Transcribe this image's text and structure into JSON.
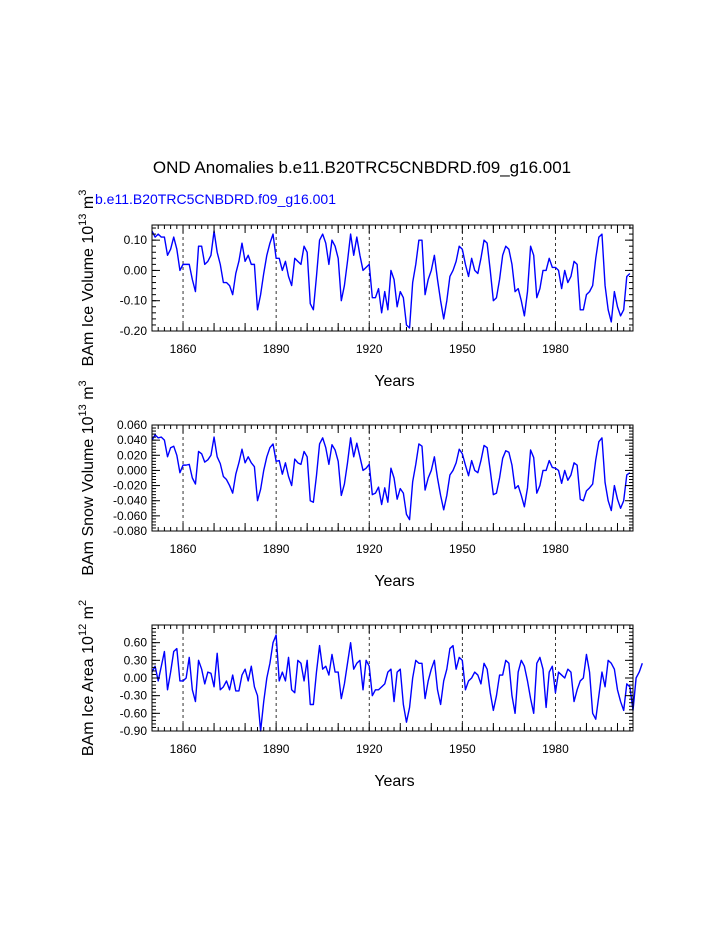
{
  "title": "OND Anomalies b.e11.B20TRC5CNBDRD.f09_g16.001",
  "subtitle": "b.e11.B20TRC5CNBDRD.f09_g16.001",
  "colors": {
    "line": "#0000ff",
    "text": "#000000"
  },
  "chart_data": [
    {
      "type": "line",
      "name": "volume",
      "ylabel_main": "BAm Ice Volume 10",
      "ylabel_exp": "13",
      "ylabel_unit": " m",
      "ylabel_unit_exp": "3",
      "xlabel": "Years",
      "xlim": [
        1850,
        2005
      ],
      "ylim": [
        -0.2,
        0.15
      ],
      "yticks": [
        -0.2,
        -0.1,
        0.0,
        0.1
      ],
      "ytick_labels": [
        "-0.20",
        "-0.10",
        "0.00",
        "0.10"
      ],
      "xticks": [
        1860,
        1890,
        1920,
        1950,
        1980
      ],
      "xtick_labels": [
        "1860",
        "1890",
        "1920",
        "1950",
        "1980"
      ],
      "ref_lines_x": [
        1860,
        1890,
        1920,
        1950,
        1980
      ],
      "x_start": 1850,
      "values": [
        0.13,
        0.11,
        0.12,
        0.11,
        0.11,
        0.05,
        0.07,
        0.11,
        0.07,
        0.0,
        0.02,
        0.02,
        0.02,
        -0.03,
        -0.07,
        0.08,
        0.08,
        0.02,
        0.03,
        0.05,
        0.13,
        0.06,
        0.02,
        -0.04,
        -0.04,
        -0.05,
        -0.08,
        -0.01,
        0.03,
        0.09,
        0.03,
        0.05,
        0.02,
        0.02,
        -0.13,
        -0.08,
        -0.01,
        0.05,
        0.09,
        0.12,
        0.04,
        0.04,
        0.0,
        0.03,
        -0.02,
        -0.05,
        0.04,
        0.03,
        0.02,
        0.08,
        0.06,
        -0.11,
        -0.13,
        -0.02,
        0.1,
        0.12,
        0.09,
        0.02,
        0.1,
        0.08,
        0.04,
        -0.1,
        -0.05,
        0.03,
        0.12,
        0.05,
        0.11,
        0.05,
        0.0,
        0.01,
        0.02,
        -0.09,
        -0.09,
        -0.06,
        -0.14,
        -0.07,
        -0.13,
        0.0,
        -0.03,
        -0.12,
        -0.07,
        -0.09,
        -0.18,
        -0.19,
        -0.04,
        0.02,
        0.1,
        0.1,
        -0.08,
        -0.03,
        0.0,
        0.05,
        -0.03,
        -0.1,
        -0.16,
        -0.1,
        -0.02,
        0.0,
        0.03,
        0.08,
        0.07,
        0.02,
        -0.02,
        0.04,
        0.0,
        -0.01,
        0.04,
        0.1,
        0.09,
        0.0,
        -0.1,
        -0.09,
        -0.03,
        0.05,
        0.08,
        0.07,
        0.02,
        -0.07,
        -0.06,
        -0.1,
        -0.15,
        -0.07,
        0.08,
        0.05,
        -0.09,
        -0.06,
        0.0,
        0.0,
        0.04,
        0.01,
        0.01,
        0.0,
        -0.06,
        0.0,
        -0.04,
        -0.02,
        0.03,
        0.02,
        -0.13,
        -0.13,
        -0.08,
        -0.07,
        -0.05,
        0.04,
        0.11,
        0.12,
        -0.05,
        -0.13,
        -0.17,
        -0.07,
        -0.12,
        -0.15,
        -0.13,
        -0.02,
        -0.01
      ]
    },
    {
      "type": "line",
      "name": "snow",
      "ylabel_main": "BAm Snow Volume 10",
      "ylabel_exp": "13",
      "ylabel_unit": " m",
      "ylabel_unit_exp": "3",
      "xlabel": "Years",
      "xlim": [
        1850,
        2005
      ],
      "ylim": [
        -0.08,
        0.06
      ],
      "yticks": [
        -0.08,
        -0.06,
        -0.04,
        -0.02,
        0.0,
        0.02,
        0.04,
        0.06
      ],
      "ytick_labels": [
        "-0.080",
        "-0.060",
        "-0.040",
        "-0.020",
        "0.000",
        "0.020",
        "0.040",
        "0.060"
      ],
      "xticks": [
        1860,
        1890,
        1920,
        1950,
        1980
      ],
      "xtick_labels": [
        "1860",
        "1890",
        "1920",
        "1950",
        "1980"
      ],
      "ref_lines_x": [
        1860,
        1890,
        1920,
        1950,
        1980
      ],
      "x_start": 1850,
      "values": [
        0.04,
        0.047,
        0.043,
        0.044,
        0.04,
        0.018,
        0.03,
        0.032,
        0.02,
        -0.003,
        0.007,
        0.007,
        0.008,
        -0.01,
        -0.018,
        0.025,
        0.022,
        0.011,
        0.014,
        0.02,
        0.044,
        0.018,
        0.009,
        -0.008,
        -0.012,
        -0.02,
        -0.03,
        -0.005,
        0.01,
        0.028,
        0.01,
        0.018,
        0.01,
        0.005,
        -0.04,
        -0.025,
        0.0,
        0.018,
        0.03,
        0.035,
        0.012,
        0.013,
        -0.005,
        0.01,
        -0.008,
        -0.02,
        0.015,
        0.01,
        0.008,
        0.025,
        0.018,
        -0.04,
        -0.042,
        -0.007,
        0.035,
        0.043,
        0.03,
        0.008,
        0.034,
        0.027,
        0.012,
        -0.033,
        -0.018,
        0.01,
        0.043,
        0.018,
        0.036,
        0.018,
        0.0,
        0.003,
        0.008,
        -0.032,
        -0.03,
        -0.022,
        -0.045,
        -0.023,
        -0.042,
        0.003,
        -0.01,
        -0.038,
        -0.024,
        -0.03,
        -0.058,
        -0.065,
        -0.015,
        0.008,
        0.035,
        0.032,
        -0.026,
        -0.01,
        0.0,
        0.018,
        -0.01,
        -0.033,
        -0.052,
        -0.033,
        -0.006,
        0.0,
        0.01,
        0.028,
        0.022,
        0.007,
        -0.007,
        0.013,
        0.0,
        -0.003,
        0.013,
        0.033,
        0.03,
        0.0,
        -0.032,
        -0.03,
        -0.01,
        0.016,
        0.026,
        0.024,
        0.007,
        -0.024,
        -0.02,
        -0.033,
        -0.048,
        -0.023,
        0.027,
        0.017,
        -0.03,
        -0.02,
        0.0,
        0.0,
        0.013,
        0.004,
        0.003,
        0.0,
        -0.017,
        0.0,
        -0.013,
        -0.006,
        0.01,
        0.007,
        -0.038,
        -0.04,
        -0.027,
        -0.023,
        -0.018,
        0.014,
        0.038,
        0.043,
        -0.016,
        -0.04,
        -0.053,
        -0.02,
        -0.038,
        -0.05,
        -0.04,
        -0.006,
        -0.003
      ]
    },
    {
      "type": "line",
      "name": "area",
      "ylabel_main": "BAm Ice Area 10",
      "ylabel_exp": "12",
      "ylabel_unit": " m",
      "ylabel_unit_exp": "2",
      "xlabel": "Years",
      "xlim": [
        1850,
        2005
      ],
      "ylim": [
        -0.9,
        0.9
      ],
      "yticks": [
        -0.9,
        -0.6,
        -0.3,
        0.0,
        0.3,
        0.6
      ],
      "ytick_labels": [
        "-0.90",
        "-0.60",
        "-0.30",
        "0.00",
        "0.30",
        "0.60"
      ],
      "xticks": [
        1860,
        1890,
        1920,
        1950,
        1980
      ],
      "xtick_labels": [
        "1860",
        "1890",
        "1920",
        "1950",
        "1980"
      ],
      "ref_lines_x": [
        1860,
        1890,
        1920,
        1950,
        1980
      ],
      "x_start": 1850,
      "values": [
        0.1,
        0.2,
        -0.05,
        0.2,
        0.45,
        -0.2,
        0.1,
        0.45,
        0.5,
        -0.05,
        -0.05,
        0.0,
        0.35,
        -0.2,
        -0.4,
        0.3,
        0.15,
        -0.1,
        0.1,
        0.08,
        -0.15,
        0.42,
        -0.2,
        -0.15,
        -0.05,
        -0.2,
        0.05,
        -0.22,
        -0.22,
        0.05,
        0.15,
        -0.05,
        0.2,
        -0.15,
        -0.3,
        -0.9,
        -0.4,
        0.0,
        0.25,
        0.6,
        0.73,
        -0.05,
        0.1,
        -0.05,
        0.35,
        -0.2,
        -0.25,
        0.3,
        0.25,
        -0.05,
        0.3,
        -0.45,
        -0.45,
        0.1,
        0.55,
        0.15,
        0.2,
        0.05,
        0.4,
        0.1,
        0.1,
        -0.35,
        -0.1,
        0.25,
        0.6,
        0.15,
        0.25,
        0.3,
        -0.2,
        0.3,
        0.2,
        -0.3,
        -0.2,
        -0.2,
        -0.15,
        -0.1,
        0.1,
        0.15,
        -0.4,
        0.1,
        0.15,
        -0.45,
        -0.75,
        -0.5,
        0.0,
        0.3,
        0.25,
        0.25,
        -0.35,
        -0.05,
        0.15,
        0.3,
        -0.2,
        -0.45,
        -0.05,
        0.15,
        0.5,
        0.55,
        0.15,
        0.35,
        0.3,
        -0.2,
        -0.05,
        0.0,
        0.1,
        0.05,
        -0.1,
        0.25,
        0.15,
        -0.25,
        -0.55,
        -0.3,
        0.05,
        0.05,
        0.3,
        0.25,
        -0.3,
        -0.6,
        0.1,
        0.3,
        0.2,
        -0.05,
        -0.35,
        -0.6,
        0.25,
        0.35,
        0.15,
        -0.5,
        0.1,
        0.2,
        -0.25,
        0.1,
        0.05,
        0.0,
        0.15,
        0.1,
        -0.4,
        -0.2,
        -0.05,
        0.0,
        0.4,
        0.1,
        -0.6,
        -0.7,
        -0.3,
        0.1,
        -0.15,
        0.3,
        0.25,
        0.15,
        -0.2,
        -0.4,
        -0.55,
        -0.1,
        -0.15,
        -0.55,
        0.0,
        0.1,
        0.25
      ]
    }
  ]
}
